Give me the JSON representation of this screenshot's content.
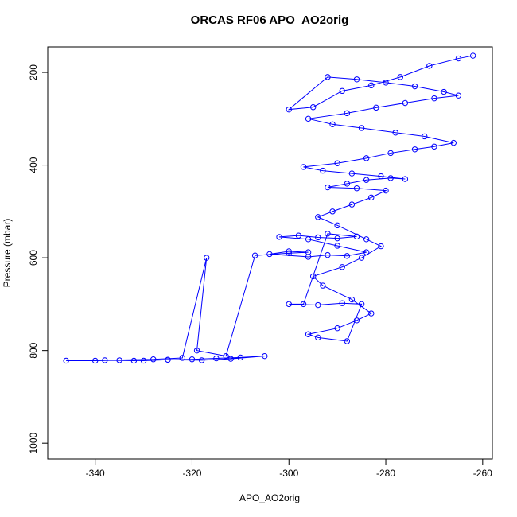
{
  "chart_data": {
    "type": "line",
    "markers": "circle",
    "title": "ORCAS RF06 APO_AO2orig",
    "x_label": "APO_AO2orig",
    "y_label": "Pressure (mbar)",
    "color": "#0000ff",
    "xlim": [
      -349.8,
      -258
    ],
    "ylim": [
      145,
      1034
    ],
    "y_reversed": true,
    "xticks": [
      -340,
      -320,
      -300,
      -280,
      -260
    ],
    "yticks": [
      200,
      400,
      600,
      800,
      1000
    ],
    "x": [
      -346,
      -340,
      -335,
      -330,
      -325,
      -320,
      -315,
      -310,
      -305,
      -312,
      -318,
      -325,
      -332,
      -338,
      -328,
      -322,
      -317,
      -319,
      -313,
      -307,
      -300,
      -296,
      -300,
      -304,
      -296,
      -292,
      -288,
      -284,
      -290,
      -296,
      -302,
      -298,
      -294,
      -290,
      -286,
      -292,
      -297,
      -300,
      -294,
      -289,
      -285,
      -288,
      -294,
      -296,
      -290,
      -286,
      -283,
      -287,
      -293,
      -295,
      -289,
      -285,
      -281,
      -284,
      -290,
      -294,
      -291,
      -287,
      -283,
      -280,
      -286,
      -292,
      -288,
      -284,
      -279,
      -276,
      -281,
      -287,
      -293,
      -297,
      -290,
      -284,
      -279,
      -274,
      -270,
      -266,
      -272,
      -278,
      -285,
      -291,
      -296,
      -288,
      -282,
      -276,
      -270,
      -265,
      -268,
      -274,
      -280,
      -286,
      -292,
      -300,
      -295,
      -289,
      -283,
      -277,
      -271,
      -265,
      -262
    ],
    "values": [
      822,
      822,
      821,
      822,
      820,
      819,
      817,
      815,
      812,
      818,
      821,
      820,
      822,
      821,
      819,
      816,
      600,
      800,
      812,
      595,
      590,
      588,
      586,
      592,
      598,
      594,
      596,
      588,
      574,
      560,
      555,
      552,
      556,
      558,
      554,
      548,
      700,
      700,
      702,
      698,
      700,
      780,
      772,
      765,
      752,
      735,
      720,
      690,
      660,
      640,
      620,
      600,
      575,
      560,
      530,
      512,
      500,
      485,
      470,
      455,
      450,
      448,
      440,
      432,
      428,
      430,
      424,
      418,
      412,
      404,
      396,
      385,
      374,
      366,
      360,
      352,
      338,
      330,
      320,
      312,
      300,
      288,
      276,
      266,
      256,
      250,
      242,
      230,
      222,
      215,
      210,
      280,
      275,
      240,
      228,
      210,
      186,
      170,
      164
    ]
  }
}
